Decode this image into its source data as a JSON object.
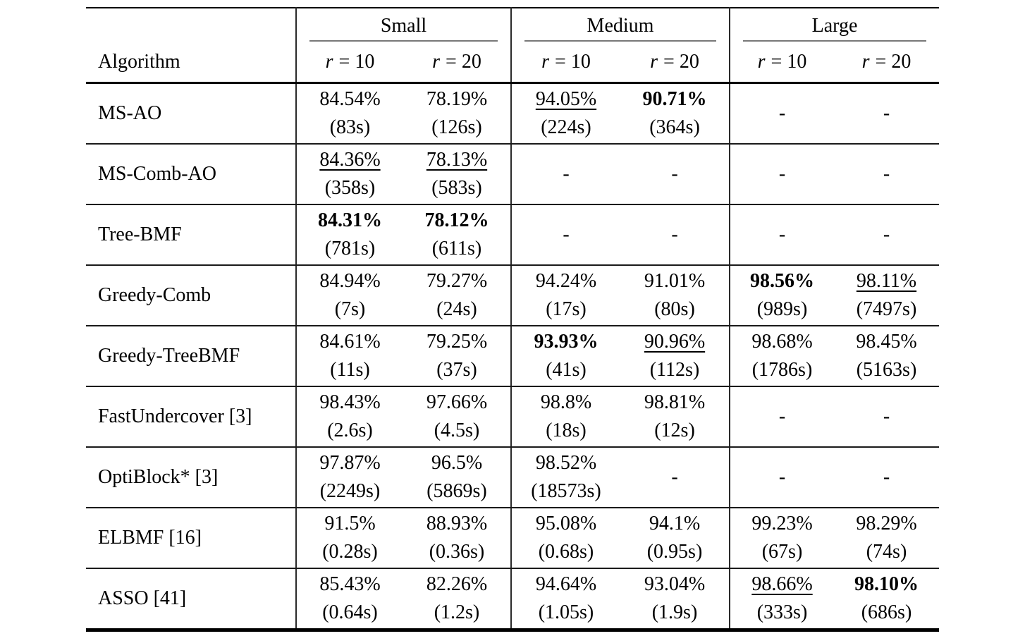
{
  "page": {
    "background": "#ffffff",
    "text_color": "#000000",
    "rule_color": "#000000",
    "cmidrule_color": "#787878"
  },
  "header": {
    "algorithm_label": "Algorithm",
    "groups": [
      {
        "label": "Small"
      },
      {
        "label": "Medium"
      },
      {
        "label": "Large"
      }
    ],
    "rank_cols": [
      {
        "var": "r",
        "eq": "= 10"
      },
      {
        "var": "r",
        "eq": "= 20"
      }
    ]
  },
  "rows": [
    {
      "name": "MS-AO",
      "cells": [
        {
          "pct": "84.54%",
          "time": "(83s)",
          "style": "plain"
        },
        {
          "pct": "78.19%",
          "time": "(126s)",
          "style": "plain"
        },
        {
          "pct": "94.05%",
          "time": "(224s)",
          "style": "underline"
        },
        {
          "pct": "90.71%",
          "time": "(364s)",
          "style": "bold"
        },
        {
          "pct": "-",
          "time": "",
          "style": "dash"
        },
        {
          "pct": "-",
          "time": "",
          "style": "dash"
        }
      ]
    },
    {
      "name": "MS-Comb-AO",
      "cells": [
        {
          "pct": "84.36%",
          "time": "(358s)",
          "style": "underline"
        },
        {
          "pct": "78.13%",
          "time": "(583s)",
          "style": "underline"
        },
        {
          "pct": "-",
          "time": "",
          "style": "dash"
        },
        {
          "pct": "-",
          "time": "",
          "style": "dash"
        },
        {
          "pct": "-",
          "time": "",
          "style": "dash"
        },
        {
          "pct": "-",
          "time": "",
          "style": "dash"
        }
      ]
    },
    {
      "name": "Tree-BMF",
      "cells": [
        {
          "pct": "84.31%",
          "time": "(781s)",
          "style": "bold"
        },
        {
          "pct": "78.12%",
          "time": "(611s)",
          "style": "bold"
        },
        {
          "pct": "-",
          "time": "",
          "style": "dash"
        },
        {
          "pct": "-",
          "time": "",
          "style": "dash"
        },
        {
          "pct": "-",
          "time": "",
          "style": "dash"
        },
        {
          "pct": "-",
          "time": "",
          "style": "dash"
        }
      ]
    },
    {
      "name": "Greedy-Comb",
      "cells": [
        {
          "pct": "84.94%",
          "time": "(7s)",
          "style": "plain"
        },
        {
          "pct": "79.27%",
          "time": "(24s)",
          "style": "plain"
        },
        {
          "pct": "94.24%",
          "time": "(17s)",
          "style": "plain"
        },
        {
          "pct": "91.01%",
          "time": "(80s)",
          "style": "plain"
        },
        {
          "pct": "98.56%",
          "time": "(989s)",
          "style": "bold"
        },
        {
          "pct": "98.11%",
          "time": "(7497s)",
          "style": "underline"
        }
      ]
    },
    {
      "name": "Greedy-TreeBMF",
      "cells": [
        {
          "pct": "84.61%",
          "time": "(11s)",
          "style": "plain"
        },
        {
          "pct": "79.25%",
          "time": "(37s)",
          "style": "plain"
        },
        {
          "pct": "93.93%",
          "time": "(41s)",
          "style": "bold"
        },
        {
          "pct": "90.96%",
          "time": "(112s)",
          "style": "underline"
        },
        {
          "pct": "98.68%",
          "time": "(1786s)",
          "style": "plain"
        },
        {
          "pct": "98.45%",
          "time": "(5163s)",
          "style": "plain"
        }
      ]
    },
    {
      "name": "FastUndercover [3]",
      "cells": [
        {
          "pct": "98.43%",
          "time": "(2.6s)",
          "style": "plain"
        },
        {
          "pct": "97.66%",
          "time": "(4.5s)",
          "style": "plain"
        },
        {
          "pct": "98.8%",
          "time": "(18s)",
          "style": "plain"
        },
        {
          "pct": "98.81%",
          "time": "(12s)",
          "style": "plain"
        },
        {
          "pct": "-",
          "time": "",
          "style": "dash"
        },
        {
          "pct": "-",
          "time": "",
          "style": "dash"
        }
      ]
    },
    {
      "name": "OptiBlock* [3]",
      "cells": [
        {
          "pct": "97.87%",
          "time": "(2249s)",
          "style": "plain"
        },
        {
          "pct": "96.5%",
          "time": "(5869s)",
          "style": "plain"
        },
        {
          "pct": "98.52%",
          "time": "(18573s)",
          "style": "plain"
        },
        {
          "pct": "-",
          "time": "",
          "style": "dash"
        },
        {
          "pct": "-",
          "time": "",
          "style": "dash"
        },
        {
          "pct": "-",
          "time": "",
          "style": "dash"
        }
      ]
    },
    {
      "name": "ELBMF [16]",
      "cells": [
        {
          "pct": "91.5%",
          "time": "(0.28s)",
          "style": "plain"
        },
        {
          "pct": "88.93%",
          "time": "(0.36s)",
          "style": "plain"
        },
        {
          "pct": "95.08%",
          "time": "(0.68s)",
          "style": "plain"
        },
        {
          "pct": "94.1%",
          "time": "(0.95s)",
          "style": "plain"
        },
        {
          "pct": "99.23%",
          "time": "(67s)",
          "style": "plain"
        },
        {
          "pct": "98.29%",
          "time": "(74s)",
          "style": "plain"
        }
      ]
    },
    {
      "name": "ASSO [41]",
      "cells": [
        {
          "pct": "85.43%",
          "time": "(0.64s)",
          "style": "plain"
        },
        {
          "pct": "82.26%",
          "time": "(1.2s)",
          "style": "plain"
        },
        {
          "pct": "94.64%",
          "time": "(1.05s)",
          "style": "plain"
        },
        {
          "pct": "93.04%",
          "time": "(1.9s)",
          "style": "plain"
        },
        {
          "pct": "98.66%",
          "time": "(333s)",
          "style": "underline"
        },
        {
          "pct": "98.10%",
          "time": "(686s)",
          "style": "bold"
        }
      ]
    }
  ]
}
